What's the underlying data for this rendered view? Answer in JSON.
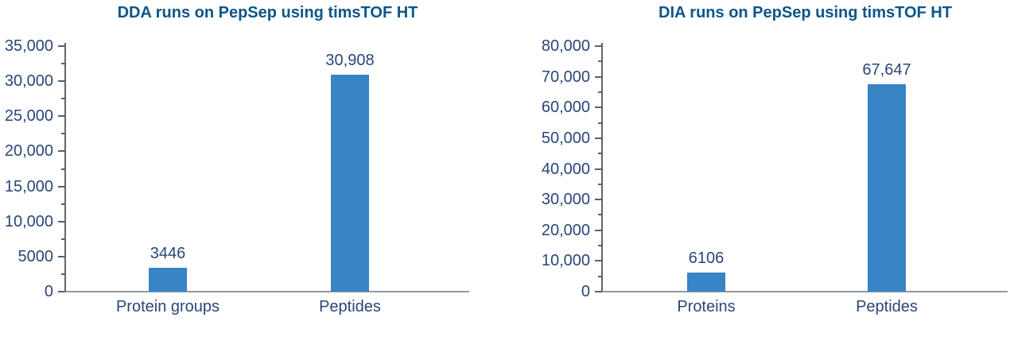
{
  "figure": {
    "background": "#ffffff",
    "bar_color": "#3884c5",
    "title_color": "#0d5689",
    "label_color": "#2a4678",
    "axis_color": "#5d6772",
    "tick_color": "#55606b",
    "baseline_color": "#94999e"
  },
  "chart_data": [
    {
      "type": "bar",
      "title": "DDA runs on PepSep using timsTOF HT",
      "categories": [
        "Protein groups",
        "Peptides"
      ],
      "values": [
        3446,
        30908
      ],
      "value_labels": [
        "3446",
        "30,908"
      ],
      "ylim": [
        0,
        35000
      ],
      "ytick_interval": 5000,
      "yminor_interval": 2500,
      "ytick_labels": [
        "0",
        "5000",
        "10,000",
        "15,000",
        "20,000",
        "25,000",
        "30,000",
        "35,000"
      ],
      "xlabel": "",
      "ylabel": "",
      "grid": false,
      "legend": "none"
    },
    {
      "type": "bar",
      "title": "DIA runs on PepSep using timsTOF HT",
      "categories": [
        "Proteins",
        "Peptides"
      ],
      "values": [
        6106,
        67647
      ],
      "value_labels": [
        "6106",
        "67,647"
      ],
      "ylim": [
        0,
        80000
      ],
      "ytick_interval": 10000,
      "yminor_interval": 5000,
      "ytick_labels": [
        "0",
        "10,000",
        "20,000",
        "30,000",
        "40,000",
        "50,000",
        "60,000",
        "70,000",
        "80,000"
      ],
      "xlabel": "",
      "ylabel": "",
      "grid": false,
      "legend": "none"
    }
  ]
}
